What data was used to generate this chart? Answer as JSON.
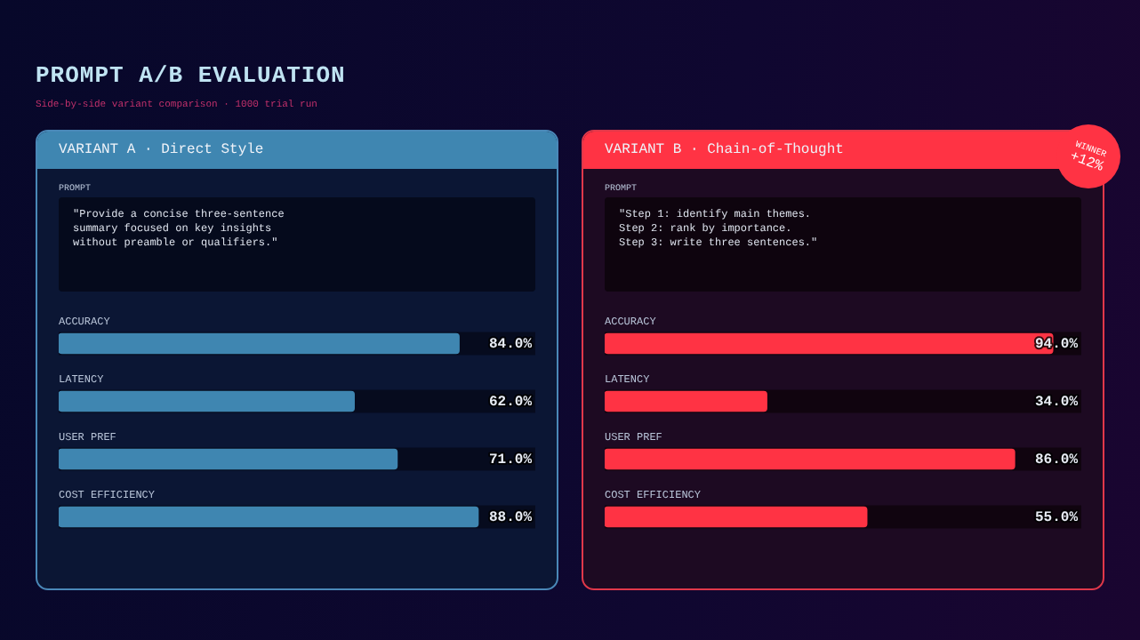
{
  "chart_data": [
    {
      "type": "other",
      "title": "PROMPT A/B EVALUATION",
      "subtitle": "Side-by-side variant comparison · 1000 trial run"
    },
    {
      "type": "bar",
      "orientation": "horizontal",
      "title": "VARIANT A · Direct Style",
      "annotations": [
        "PROMPT",
        "\"Provide a concise three-sentence\nsummary focused on key insights\nwithout preamble or qualifiers.\""
      ],
      "categories": [
        "ACCURACY",
        "LATENCY",
        "USER PREF",
        "COST EFFICIENCY"
      ],
      "values": [
        84,
        62,
        71,
        88
      ],
      "value_labels": [
        "84.0%",
        "62.0%",
        "71.0%",
        "88.0%"
      ],
      "color": "#3f86b1",
      "xlim": [
        0,
        100
      ],
      "tick_labels": "y"
    },
    {
      "type": "bar",
      "orientation": "horizontal",
      "title": "VARIANT B · Chain-of-Thought",
      "annotations": [
        "PROMPT",
        "\"Step 1: identify main themes.\nStep 2: rank by importance.\nStep 3: write three sentences.\"",
        "WINNER",
        "+12%"
      ],
      "categories": [
        "ACCURACY",
        "LATENCY",
        "USER PREF",
        "COST EFFICIENCY"
      ],
      "values": [
        94,
        34,
        86,
        55
      ],
      "value_labels": [
        "94.0%",
        "34.0%",
        "86.0%",
        "55.0%"
      ],
      "color": "#ff3344",
      "xlim": [
        0,
        100
      ],
      "tick_labels": "y"
    }
  ]
}
